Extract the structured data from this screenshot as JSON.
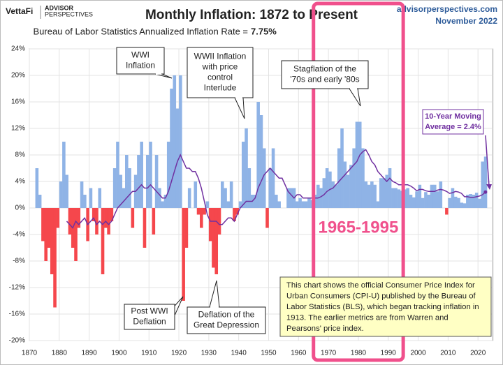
{
  "header": {
    "logo": "VettaFi",
    "brand": [
      "ADVISOR",
      "PERSPECTIVES"
    ],
    "site": "advisorperspectives.com",
    "date": "November 2022"
  },
  "chart_data": {
    "type": "area",
    "title": "Monthly Inflation: 1872 to Present",
    "subtitle": "Bureau of Labor Statistics Annualized Inflation Rate =",
    "subtitle_value": "7.75%",
    "color_positive": "#8fb3e6",
    "color_negative": "#f5474c",
    "grid": true,
    "xlim": [
      1870,
      2025
    ],
    "xticks": [
      1870,
      1880,
      1890,
      1900,
      1910,
      1920,
      1930,
      1940,
      1950,
      1960,
      1970,
      1980,
      1990,
      2000,
      2010,
      2020
    ],
    "ylim": [
      -20,
      24
    ],
    "yticks": [
      {
        "value": 24,
        "label": "24%"
      },
      {
        "value": 20,
        "label": "20%"
      },
      {
        "value": 16,
        "label": "16%"
      },
      {
        "value": 12,
        "label": "12%"
      },
      {
        "value": 8,
        "label": "8%"
      },
      {
        "value": 4,
        "label": "4%"
      },
      {
        "value": 0,
        "label": "0%"
      },
      {
        "value": -4,
        "label": "-4%"
      },
      {
        "value": -8,
        "label": "-8%"
      },
      {
        "value": -12,
        "label": "-12%"
      },
      {
        "value": -16,
        "label": "-16%"
      },
      {
        "value": -20,
        "label": "-20%"
      }
    ],
    "x": [
      1872,
      1873,
      1874,
      1875,
      1876,
      1877,
      1878,
      1879,
      1880,
      1881,
      1882,
      1883,
      1884,
      1885,
      1886,
      1887,
      1888,
      1889,
      1890,
      1891,
      1892,
      1893,
      1894,
      1895,
      1896,
      1897,
      1898,
      1899,
      1900,
      1901,
      1902,
      1903,
      1904,
      1905,
      1906,
      1907,
      1908,
      1909,
      1910,
      1911,
      1912,
      1913,
      1914,
      1915,
      1916,
      1917,
      1918,
      1919,
      1920,
      1921,
      1922,
      1923,
      1924,
      1925,
      1926,
      1927,
      1928,
      1929,
      1930,
      1931,
      1932,
      1933,
      1934,
      1935,
      1936,
      1937,
      1938,
      1939,
      1940,
      1941,
      1942,
      1943,
      1944,
      1945,
      1946,
      1947,
      1948,
      1949,
      1950,
      1951,
      1952,
      1953,
      1954,
      1955,
      1956,
      1957,
      1958,
      1959,
      1960,
      1961,
      1962,
      1963,
      1964,
      1965,
      1966,
      1967,
      1968,
      1969,
      1970,
      1971,
      1972,
      1973,
      1974,
      1975,
      1976,
      1977,
      1978,
      1979,
      1980,
      1981,
      1982,
      1983,
      1984,
      1985,
      1986,
      1987,
      1988,
      1989,
      1990,
      1991,
      1992,
      1993,
      1994,
      1995,
      1996,
      1997,
      1998,
      1999,
      2000,
      2001,
      2002,
      2003,
      2004,
      2005,
      2006,
      2007,
      2008,
      2009,
      2010,
      2011,
      2012,
      2013,
      2014,
      2015,
      2016,
      2017,
      2018,
      2019,
      2020,
      2021,
      2022
    ],
    "values": [
      6,
      2,
      -5,
      -8,
      -6,
      -10,
      -15,
      -3,
      4,
      10,
      5,
      -4,
      -6,
      -8,
      -3,
      4,
      2,
      -5,
      3,
      -2,
      -4,
      3,
      -10,
      -3,
      -4,
      -2,
      6,
      10,
      5,
      3,
      8,
      6,
      -3,
      5,
      8,
      10,
      -6,
      8,
      10,
      -4,
      8,
      3,
      1,
      2,
      10,
      18,
      20,
      15,
      20,
      -14,
      -6,
      3,
      0,
      4,
      -1,
      -3,
      -1,
      1,
      -5,
      -9,
      -10,
      -4,
      4,
      3,
      1,
      4,
      -2,
      -1,
      1,
      10,
      12,
      6,
      2,
      2,
      16,
      14,
      9,
      -3,
      6,
      9,
      2,
      1,
      0,
      0,
      3,
      3,
      3,
      1,
      1.5,
      1,
      1,
      1.5,
      1.2,
      2,
      3.5,
      3,
      4.5,
      6,
      5.5,
      4,
      3.5,
      9,
      12,
      7,
      5,
      6.5,
      9,
      13,
      13,
      9,
      4,
      3.5,
      4,
      3.5,
      1,
      4.5,
      4.5,
      5,
      6,
      3,
      3,
      2.8,
      2.6,
      2.8,
      3,
      2,
      1.6,
      2.5,
      3.5,
      1.5,
      2.4,
      2,
      3.5,
      3.5,
      2.5,
      4,
      0,
      -1,
      1.5,
      3,
      1.7,
      1.5,
      0.8,
      0.7,
      2,
      2.1,
      2,
      2.3,
      1.4,
      7,
      7.75
    ],
    "moving_average": {
      "color": "#7030a0",
      "values": [
        null,
        null,
        null,
        null,
        null,
        null,
        null,
        null,
        null,
        null,
        -2,
        -2.5,
        -3,
        -2,
        -2.5,
        -2,
        -1.5,
        -2.5,
        -2,
        -1.5,
        -2.5,
        -2,
        -2.5,
        -2,
        -2.5,
        -2,
        -1,
        0,
        0.5,
        1,
        1.5,
        2,
        2.5,
        2.5,
        3,
        3.5,
        3,
        3,
        3.5,
        3,
        2.5,
        2,
        1.5,
        1.5,
        2.5,
        4,
        5.5,
        7,
        8,
        7,
        6,
        6,
        5.5,
        5.5,
        4.5,
        3,
        1,
        -1,
        -2,
        -2,
        -2,
        -2.5,
        -2.5,
        -2,
        -1.5,
        -1.5,
        -2,
        -1,
        0,
        0.5,
        1,
        1,
        1,
        1.5,
        3,
        4,
        5,
        5.5,
        6,
        5.5,
        5,
        4.5,
        4.5,
        3.5,
        2.5,
        2,
        1.5,
        2,
        2,
        1.5,
        1.5,
        1.5,
        1.5,
        1.5,
        1.5,
        1.7,
        2,
        2.5,
        2.8,
        3,
        3.5,
        4,
        4.5,
        5,
        5.5,
        6,
        6.5,
        7,
        8,
        8.5,
        8.8,
        8,
        7,
        6.5,
        5.5,
        5,
        4.5,
        4,
        4.5,
        4,
        3.8,
        3.5,
        3.5,
        3.5,
        3.5,
        3.3,
        3,
        2.6,
        2.8,
        2.8,
        2.6,
        2.5,
        2.5,
        2.5,
        2.7,
        2.8,
        2.7,
        2.5,
        2.2,
        2.3,
        2.5,
        2.4,
        2.2,
        1.7,
        1.7,
        1.6,
        1.6,
        1.7,
        1.8,
        2,
        2.4
      ]
    },
    "highlight": {
      "label": "1965-1995",
      "start": 1965,
      "end": 1995,
      "color": "#f0508c"
    },
    "annotations": [
      {
        "lines": [
          "WWI",
          "Inflation"
        ]
      },
      {
        "lines": [
          "WWII Inflation",
          "with price",
          "control",
          "Interlude"
        ]
      },
      {
        "lines": [
          "Stagflation of the",
          "'70s and early '80s"
        ]
      },
      {
        "lines": [
          "10-Year Moving",
          "Average = 2.4%"
        ]
      },
      {
        "lines": [
          "Post WWI",
          "Deflation"
        ]
      },
      {
        "lines": [
          "Deflation of the",
          "Great Depression"
        ]
      }
    ],
    "note": [
      "This chart shows the official Consumer Price Index for",
      "Urban Consumers (CPI-U) published by the Bureau of",
      "Labor Statistics (BLS), which began tracking inflation in",
      "1913.  The earlier metrics are from Warren and",
      "Pearsons' price index."
    ]
  }
}
